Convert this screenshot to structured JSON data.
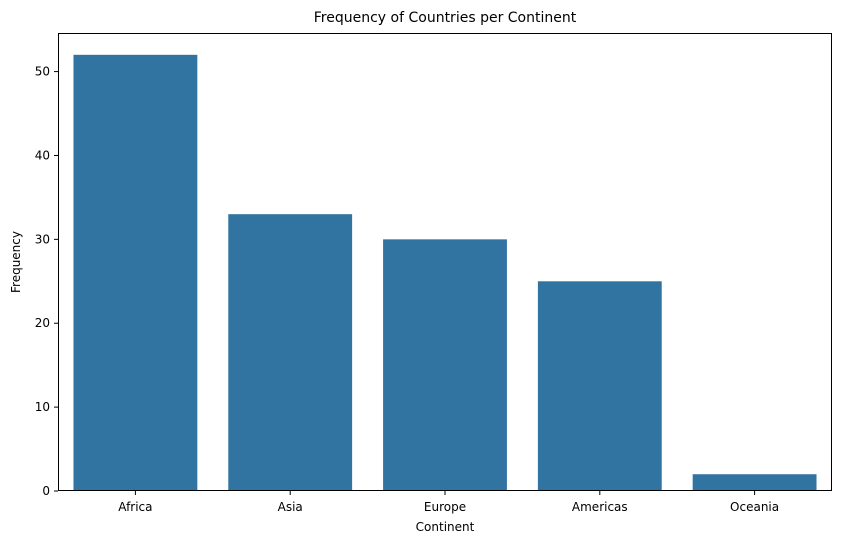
{
  "chart_data": {
    "type": "bar",
    "title": "Frequency of Countries per Continent",
    "xlabel": "Continent",
    "ylabel": "Frequency",
    "categories": [
      "Africa",
      "Asia",
      "Europe",
      "Americas",
      "Oceania"
    ],
    "values": [
      52,
      33,
      30,
      25,
      2
    ],
    "ylim": [
      0,
      54.6
    ],
    "yticks": [
      0,
      10,
      20,
      30,
      40,
      50
    ],
    "grid": false,
    "bar_color": "#3274a1"
  }
}
